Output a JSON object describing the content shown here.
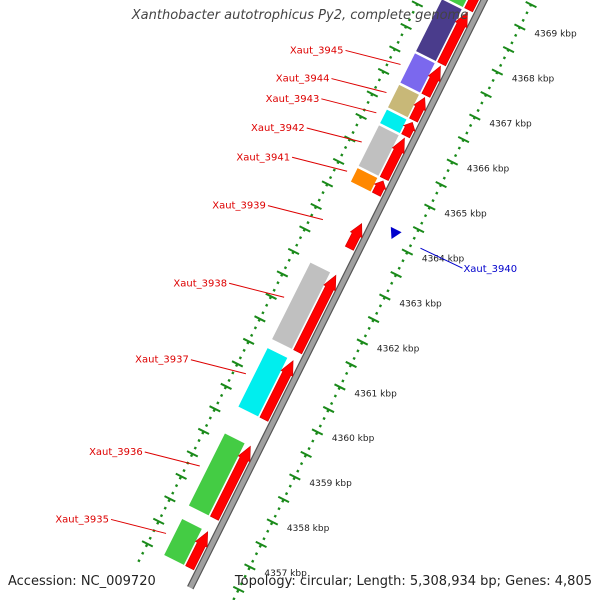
{
  "title": "Xanthobacter autotrophicus Py2, complete genome",
  "footer": {
    "accession": "Accession: NC_009720",
    "summary": "Topology: circular; Length: 5,308,934 bp; Genes: 4,805"
  },
  "ruler": {
    "unit": "kbp",
    "ticks": [
      "4357 kbp",
      "4358 kbp",
      "4359 kbp",
      "4360 kbp",
      "4361 kbp",
      "4362 kbp",
      "4363 kbp",
      "4364 kbp",
      "4365 kbp",
      "4366 kbp",
      "4367 kbp",
      "4368 kbp",
      "4369 kbp"
    ]
  },
  "colors": {
    "label_forward": "#dd0000",
    "label_reverse": "#0000cc",
    "cds": "#ff0000",
    "backbone": "#a0a0a0",
    "scale": "#1a8a1a"
  },
  "genes": [
    {
      "label": "Xaut_3935",
      "strand": "forward",
      "start_kbp": 4356.45,
      "end_kbp": 4357.25,
      "cog_color": "#44cc44"
    },
    {
      "label": "Xaut_3936",
      "strand": "forward",
      "start_kbp": 4357.55,
      "end_kbp": 4359.15,
      "cog_color": "#44cc44"
    },
    {
      "label": "Xaut_3937",
      "strand": "forward",
      "start_kbp": 4359.75,
      "end_kbp": 4361.05,
      "cog_color": "#00eeee"
    },
    {
      "label": "Xaut_3938",
      "strand": "forward",
      "start_kbp": 4361.25,
      "end_kbp": 4362.95,
      "cog_color": "#c0c0c0"
    },
    {
      "label": "Xaut_3939",
      "strand": "forward",
      "start_kbp": 4363.55,
      "end_kbp": 4364.1,
      "cog_color": null
    },
    {
      "label": "Xaut_3940",
      "strand": "reverse",
      "start_kbp": 4364.15,
      "end_kbp": 4364.22,
      "cog_color": null
    },
    {
      "label": "Xaut_3941",
      "strand": "forward",
      "start_kbp": 4364.75,
      "end_kbp": 4365.05,
      "cog_color": "#ff8800"
    },
    {
      "label": "Xaut_3942",
      "strand": "forward",
      "start_kbp": 4365.1,
      "end_kbp": 4366.0,
      "cog_color": "#c0c0c0"
    },
    {
      "label": "Xaut_3943",
      "strand": "forward",
      "start_kbp": 4366.05,
      "end_kbp": 4366.35,
      "cog_color": "#00eeee"
    },
    {
      "label": "Xaut_3944",
      "strand": "forward",
      "start_kbp": 4366.4,
      "end_kbp": 4366.9,
      "cog_color": "#c8b878"
    },
    {
      "label": "Xaut_3945",
      "strand": "forward",
      "start_kbp": 4366.95,
      "end_kbp": 4367.6,
      "cog_color": "#7b68ee"
    },
    {
      "label": "",
      "strand": "forward",
      "start_kbp": 4367.65,
      "end_kbp": 4368.8,
      "cog_color": "#4a3c8c"
    },
    {
      "label": "",
      "strand": "forward",
      "start_kbp": 4368.85,
      "end_kbp": 4369.6,
      "cog_color": "#44cc44"
    }
  ]
}
